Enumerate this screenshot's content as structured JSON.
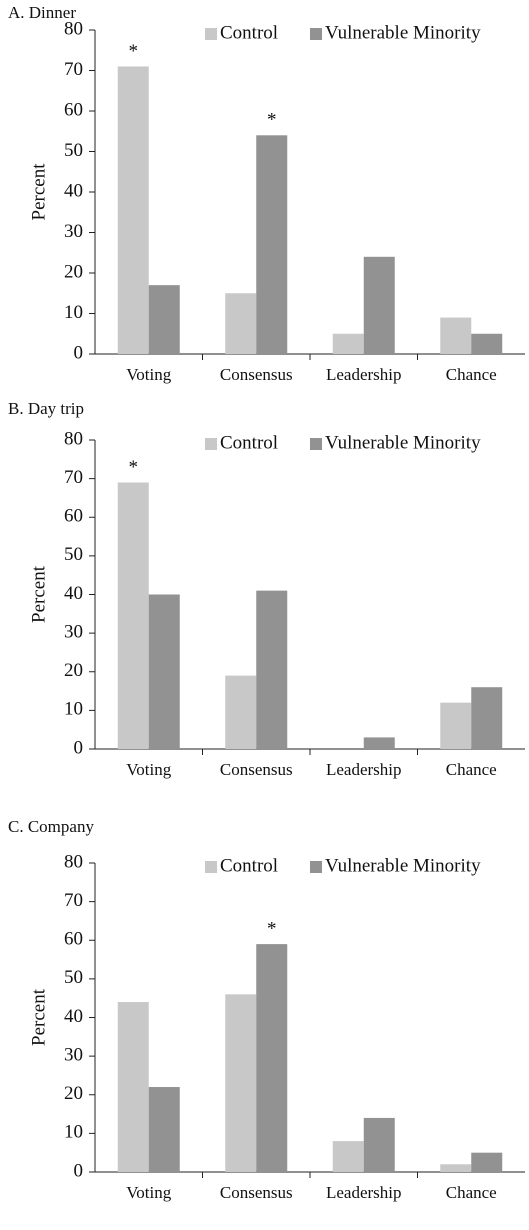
{
  "chart_data": [
    {
      "type": "bar",
      "title": "A. Dinner",
      "ylabel": "Percent",
      "categories": [
        "Voting",
        "Consensus",
        "Leadership",
        "Chance"
      ],
      "series": [
        {
          "name": "Control",
          "color": "#c8c8c8",
          "values": [
            71,
            15,
            5,
            9
          ]
        },
        {
          "name": "Vulnerable Minority",
          "color": "#929292",
          "values": [
            17,
            54,
            24,
            5
          ]
        }
      ],
      "ylim": [
        0,
        80
      ],
      "yticks": [
        0,
        10,
        20,
        30,
        40,
        50,
        60,
        70,
        80
      ],
      "annotations": [
        {
          "text": "*",
          "series": 0,
          "category": 0
        },
        {
          "text": "*",
          "series": 1,
          "category": 1
        }
      ]
    },
    {
      "type": "bar",
      "title": "B. Day trip",
      "ylabel": "Percent",
      "categories": [
        "Voting",
        "Consensus",
        "Leadership",
        "Chance"
      ],
      "series": [
        {
          "name": "Control",
          "color": "#c8c8c8",
          "values": [
            69,
            19,
            0,
            12
          ]
        },
        {
          "name": "Vulnerable Minority",
          "color": "#929292",
          "values": [
            40,
            41,
            3,
            16
          ]
        }
      ],
      "ylim": [
        0,
        80
      ],
      "yticks": [
        0,
        10,
        20,
        30,
        40,
        50,
        60,
        70,
        80
      ],
      "annotations": [
        {
          "text": "*",
          "series": 0,
          "category": 0
        }
      ]
    },
    {
      "type": "bar",
      "title": "C. Company",
      "ylabel": "Percent",
      "categories": [
        "Voting",
        "Consensus",
        "Leadership",
        "Chance"
      ],
      "series": [
        {
          "name": "Control",
          "color": "#c8c8c8",
          "values": [
            44,
            46,
            8,
            2
          ]
        },
        {
          "name": "Vulnerable Minority",
          "color": "#929292",
          "values": [
            22,
            59,
            14,
            5
          ]
        }
      ],
      "ylim": [
        0,
        80
      ],
      "yticks": [
        0,
        10,
        20,
        30,
        40,
        50,
        60,
        70,
        80
      ],
      "annotations": [
        {
          "text": "*",
          "series": 1,
          "category": 1
        }
      ]
    }
  ]
}
